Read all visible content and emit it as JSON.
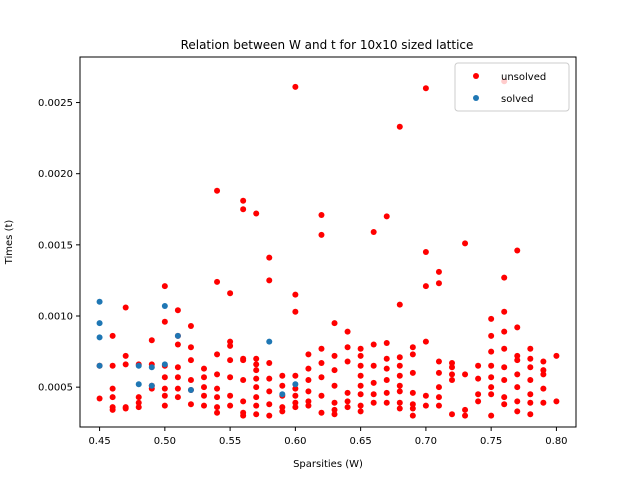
{
  "chart_data": {
    "type": "scatter",
    "title": "Relation between W and t for 10x10 sized lattice",
    "xlabel": "Sparsities (W)",
    "ylabel": "Times (t)",
    "xlim": [
      0.435,
      0.815
    ],
    "ylim": [
      0.00022,
      0.00282
    ],
    "x_ticks": [
      0.45,
      0.5,
      0.55,
      0.6,
      0.65,
      0.7,
      0.75,
      0.8
    ],
    "x_tick_labels": [
      "0.45",
      "0.50",
      "0.55",
      "0.60",
      "0.65",
      "0.70",
      "0.75",
      "0.80"
    ],
    "y_ticks": [
      0.0005,
      0.001,
      0.0015,
      0.002,
      0.0025
    ],
    "y_tick_labels": [
      "0.0005",
      "0.0010",
      "0.0015",
      "0.0020",
      "0.0025"
    ],
    "grid": false,
    "legend_position": "top-right",
    "colors": {
      "unsolved": "#ff0000",
      "solved": "#1f77b4"
    },
    "series": [
      {
        "name": "unsolved",
        "points": [
          [
            0.45,
            0.00065
          ],
          [
            0.45,
            0.00042
          ],
          [
            0.46,
            0.00086
          ],
          [
            0.46,
            0.00065
          ],
          [
            0.46,
            0.00049
          ],
          [
            0.46,
            0.00043
          ],
          [
            0.46,
            0.00036
          ],
          [
            0.46,
            0.00034
          ],
          [
            0.47,
            0.00106
          ],
          [
            0.47,
            0.00072
          ],
          [
            0.47,
            0.00066
          ],
          [
            0.47,
            0.00036
          ],
          [
            0.47,
            0.00035
          ],
          [
            0.48,
            0.00066
          ],
          [
            0.48,
            0.00043
          ],
          [
            0.48,
            0.00039
          ],
          [
            0.48,
            0.00036
          ],
          [
            0.49,
            0.00083
          ],
          [
            0.49,
            0.00066
          ],
          [
            0.49,
            0.00051
          ],
          [
            0.49,
            0.00049
          ],
          [
            0.5,
            0.00121
          ],
          [
            0.5,
            0.00096
          ],
          [
            0.5,
            0.00065
          ],
          [
            0.5,
            0.00057
          ],
          [
            0.5,
            0.00049
          ],
          [
            0.5,
            0.00044
          ],
          [
            0.5,
            0.00037
          ],
          [
            0.51,
            0.00104
          ],
          [
            0.51,
            0.00086
          ],
          [
            0.51,
            0.0008
          ],
          [
            0.51,
            0.00064
          ],
          [
            0.51,
            0.00057
          ],
          [
            0.51,
            0.00049
          ],
          [
            0.51,
            0.00043
          ],
          [
            0.52,
            0.00093
          ],
          [
            0.52,
            0.00078
          ],
          [
            0.52,
            0.00069
          ],
          [
            0.52,
            0.00055
          ],
          [
            0.52,
            0.00048
          ],
          [
            0.52,
            0.00038
          ],
          [
            0.53,
            0.00063
          ],
          [
            0.53,
            0.00057
          ],
          [
            0.53,
            0.0005
          ],
          [
            0.53,
            0.00044
          ],
          [
            0.53,
            0.00037
          ],
          [
            0.54,
            0.00188
          ],
          [
            0.54,
            0.00124
          ],
          [
            0.54,
            0.00073
          ],
          [
            0.54,
            0.00059
          ],
          [
            0.54,
            0.00049
          ],
          [
            0.54,
            0.00043
          ],
          [
            0.54,
            0.00036
          ],
          [
            0.54,
            0.00032
          ],
          [
            0.55,
            0.00116
          ],
          [
            0.55,
            0.00082
          ],
          [
            0.55,
            0.00079
          ],
          [
            0.55,
            0.00069
          ],
          [
            0.55,
            0.00057
          ],
          [
            0.55,
            0.00044
          ],
          [
            0.55,
            0.00037
          ],
          [
            0.56,
            0.00181
          ],
          [
            0.56,
            0.00175
          ],
          [
            0.56,
            0.0007
          ],
          [
            0.56,
            0.00069
          ],
          [
            0.56,
            0.00055
          ],
          [
            0.56,
            0.0004
          ],
          [
            0.56,
            0.00032
          ],
          [
            0.56,
            0.0003
          ],
          [
            0.57,
            0.00172
          ],
          [
            0.57,
            0.0007
          ],
          [
            0.57,
            0.00066
          ],
          [
            0.57,
            0.00062
          ],
          [
            0.57,
            0.00056
          ],
          [
            0.57,
            0.0005
          ],
          [
            0.57,
            0.00043
          ],
          [
            0.57,
            0.00037
          ],
          [
            0.57,
            0.00031
          ],
          [
            0.58,
            0.00141
          ],
          [
            0.58,
            0.00125
          ],
          [
            0.58,
            0.00067
          ],
          [
            0.58,
            0.00056
          ],
          [
            0.58,
            0.00047
          ],
          [
            0.58,
            0.00038
          ],
          [
            0.58,
            0.0003
          ],
          [
            0.59,
            0.00058
          ],
          [
            0.59,
            0.00051
          ],
          [
            0.59,
            0.00044
          ],
          [
            0.59,
            0.00036
          ],
          [
            0.59,
            0.00033
          ],
          [
            0.6,
            0.00261
          ],
          [
            0.6,
            0.00115
          ],
          [
            0.6,
            0.00103
          ],
          [
            0.6,
            0.00058
          ],
          [
            0.6,
            0.00049
          ],
          [
            0.6,
            0.00044
          ],
          [
            0.6,
            0.00039
          ],
          [
            0.6,
            0.00036
          ],
          [
            0.61,
            0.00073
          ],
          [
            0.61,
            0.00063
          ],
          [
            0.61,
            0.00055
          ],
          [
            0.61,
            0.00047
          ],
          [
            0.61,
            0.0004
          ],
          [
            0.61,
            0.00037
          ],
          [
            0.62,
            0.00171
          ],
          [
            0.62,
            0.00157
          ],
          [
            0.62,
            0.00077
          ],
          [
            0.62,
            0.00067
          ],
          [
            0.62,
            0.00057
          ],
          [
            0.62,
            0.00044
          ],
          [
            0.62,
            0.00032
          ],
          [
            0.63,
            0.00095
          ],
          [
            0.63,
            0.00072
          ],
          [
            0.63,
            0.00062
          ],
          [
            0.63,
            0.00051
          ],
          [
            0.63,
            0.00039
          ],
          [
            0.63,
            0.00034
          ],
          [
            0.63,
            0.00031
          ],
          [
            0.64,
            0.00089
          ],
          [
            0.64,
            0.00078
          ],
          [
            0.64,
            0.00068
          ],
          [
            0.64,
            0.00046
          ],
          [
            0.64,
            0.0004
          ],
          [
            0.64,
            0.00036
          ],
          [
            0.65,
            0.00077
          ],
          [
            0.65,
            0.00072
          ],
          [
            0.65,
            0.00065
          ],
          [
            0.65,
            0.00058
          ],
          [
            0.65,
            0.00051
          ],
          [
            0.65,
            0.00045
          ],
          [
            0.65,
            0.00037
          ],
          [
            0.65,
            0.00033
          ],
          [
            0.66,
            0.00159
          ],
          [
            0.66,
            0.0008
          ],
          [
            0.66,
            0.00065
          ],
          [
            0.66,
            0.00053
          ],
          [
            0.66,
            0.00045
          ],
          [
            0.66,
            0.00039
          ],
          [
            0.67,
            0.0017
          ],
          [
            0.67,
            0.00081
          ],
          [
            0.67,
            0.0007
          ],
          [
            0.67,
            0.00063
          ],
          [
            0.67,
            0.00055
          ],
          [
            0.67,
            0.00046
          ],
          [
            0.67,
            0.00039
          ],
          [
            0.68,
            0.00233
          ],
          [
            0.68,
            0.00108
          ],
          [
            0.68,
            0.00071
          ],
          [
            0.68,
            0.00065
          ],
          [
            0.68,
            0.00058
          ],
          [
            0.68,
            0.00051
          ],
          [
            0.68,
            0.00047
          ],
          [
            0.68,
            0.00039
          ],
          [
            0.68,
            0.00035
          ],
          [
            0.69,
            0.00078
          ],
          [
            0.69,
            0.00073
          ],
          [
            0.69,
            0.0006
          ],
          [
            0.69,
            0.00046
          ],
          [
            0.69,
            0.00038
          ],
          [
            0.69,
            0.00035
          ],
          [
            0.69,
            0.0003
          ],
          [
            0.7,
            0.0026
          ],
          [
            0.7,
            0.00145
          ],
          [
            0.7,
            0.00121
          ],
          [
            0.7,
            0.00082
          ],
          [
            0.7,
            0.00044
          ],
          [
            0.7,
            0.00037
          ],
          [
            0.71,
            0.00131
          ],
          [
            0.71,
            0.00123
          ],
          [
            0.71,
            0.00068
          ],
          [
            0.71,
            0.0006
          ],
          [
            0.71,
            0.0005
          ],
          [
            0.71,
            0.00043
          ],
          [
            0.71,
            0.00037
          ],
          [
            0.72,
            0.00067
          ],
          [
            0.72,
            0.00064
          ],
          [
            0.72,
            0.00059
          ],
          [
            0.72,
            0.00055
          ],
          [
            0.72,
            0.00031
          ],
          [
            0.73,
            0.00151
          ],
          [
            0.73,
            0.00059
          ],
          [
            0.73,
            0.00034
          ],
          [
            0.73,
            0.0003
          ],
          [
            0.74,
            0.00065
          ],
          [
            0.74,
            0.00056
          ],
          [
            0.74,
            0.00045
          ],
          [
            0.74,
            0.0004
          ],
          [
            0.75,
            0.00098
          ],
          [
            0.75,
            0.00086
          ],
          [
            0.75,
            0.00075
          ],
          [
            0.75,
            0.00065
          ],
          [
            0.75,
            0.00057
          ],
          [
            0.75,
            0.0005
          ],
          [
            0.75,
            0.00045
          ],
          [
            0.75,
            0.0003
          ],
          [
            0.76,
            0.00265
          ],
          [
            0.76,
            0.00127
          ],
          [
            0.76,
            0.00103
          ],
          [
            0.76,
            0.00089
          ],
          [
            0.76,
            0.00077
          ],
          [
            0.76,
            0.00064
          ],
          [
            0.76,
            0.00055
          ],
          [
            0.76,
            0.00043
          ],
          [
            0.76,
            0.00038
          ],
          [
            0.77,
            0.00146
          ],
          [
            0.77,
            0.00092
          ],
          [
            0.77,
            0.00072
          ],
          [
            0.77,
            0.00069
          ],
          [
            0.77,
            0.00059
          ],
          [
            0.77,
            0.0005
          ],
          [
            0.77,
            0.0004
          ],
          [
            0.77,
            0.00033
          ],
          [
            0.78,
            0.00077
          ],
          [
            0.78,
            0.0007
          ],
          [
            0.78,
            0.00064
          ],
          [
            0.78,
            0.00055
          ],
          [
            0.78,
            0.00045
          ],
          [
            0.78,
            0.00039
          ],
          [
            0.78,
            0.00031
          ],
          [
            0.79,
            0.00068
          ],
          [
            0.79,
            0.00062
          ],
          [
            0.79,
            0.00059
          ],
          [
            0.79,
            0.00049
          ],
          [
            0.79,
            0.00039
          ],
          [
            0.8,
            0.00072
          ],
          [
            0.8,
            0.0004
          ]
        ]
      },
      {
        "name": "solved",
        "points": [
          [
            0.45,
            0.0011
          ],
          [
            0.45,
            0.00095
          ],
          [
            0.45,
            0.00085
          ],
          [
            0.45,
            0.00065
          ],
          [
            0.48,
            0.00065
          ],
          [
            0.48,
            0.00052
          ],
          [
            0.49,
            0.00064
          ],
          [
            0.49,
            0.00051
          ],
          [
            0.5,
            0.00107
          ],
          [
            0.5,
            0.00066
          ],
          [
            0.51,
            0.00086
          ],
          [
            0.52,
            0.00048
          ],
          [
            0.58,
            0.00082
          ],
          [
            0.59,
            0.00045
          ],
          [
            0.6,
            0.00052
          ]
        ]
      }
    ]
  }
}
